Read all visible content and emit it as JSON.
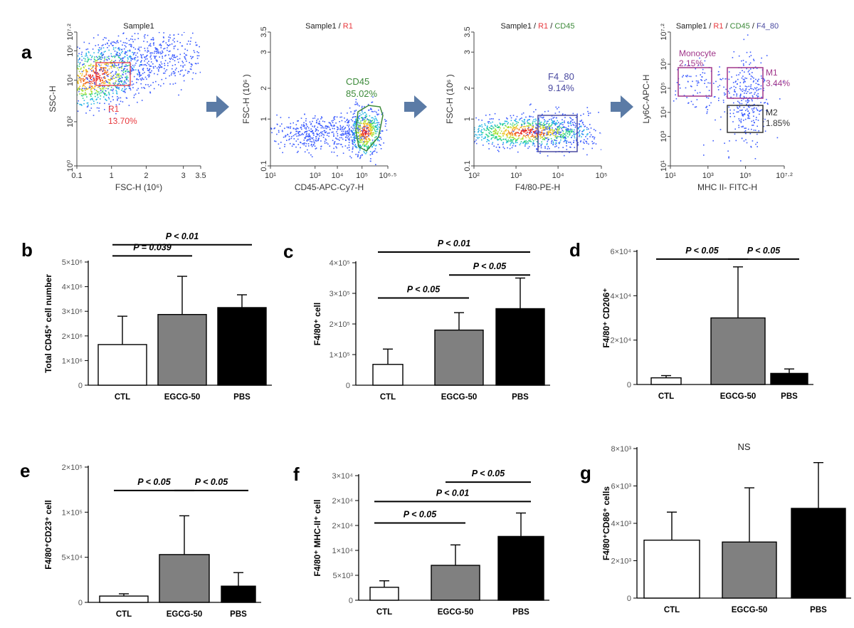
{
  "figure": {
    "panel_labels": [
      "a",
      "b",
      "c",
      "d",
      "e",
      "f",
      "g"
    ],
    "flow_plots": [
      {
        "title": [
          {
            "t": "Sample1",
            "c": "#222222"
          }
        ],
        "xlabel": "FSC-H  (10⁶)",
        "ylabel": "SSC-H",
        "xticks": [
          "0.1",
          "1",
          "2",
          "3",
          "3.5"
        ],
        "yticks": [
          "10⁰",
          "10²",
          "10⁴",
          "10⁶",
          "10⁷·²"
        ],
        "gate_labels": [
          {
            "text": "R1",
            "color": "#e8383d"
          },
          {
            "text": "13.70%",
            "color": "#e8383d"
          }
        ]
      },
      {
        "title": [
          {
            "t": "Sample1",
            "c": "#222222"
          },
          {
            "t": " / ",
            "c": "#222222"
          },
          {
            "t": "R1",
            "c": "#e8383d"
          }
        ],
        "xlabel": "CD45-APC-Cy7-H",
        "ylabel": "FSC-H (10⁶ )",
        "xticks": [
          "10¹",
          "10³",
          "10⁴",
          "10⁵",
          "10⁶·⁵"
        ],
        "yticks": [
          "0.1",
          "1",
          "2",
          "3",
          "3.5"
        ],
        "gate_labels": [
          {
            "text": "CD45",
            "color": "#3d8a3a"
          },
          {
            "text": "85.02%",
            "color": "#3d8a3a"
          }
        ]
      },
      {
        "title": [
          {
            "t": "Sample1",
            "c": "#222222"
          },
          {
            "t": " / ",
            "c": "#222222"
          },
          {
            "t": "R1",
            "c": "#e8383d"
          },
          {
            "t": " / ",
            "c": "#222222"
          },
          {
            "t": "CD45",
            "c": "#3d8a3a"
          }
        ],
        "xlabel": "F4/80-PE-H",
        "ylabel": "FSC-H (10⁶ )",
        "xticks": [
          "10²",
          "10³",
          "10⁴",
          "10⁵"
        ],
        "yticks": [
          "0.1",
          "1",
          "2",
          "3",
          "3.5"
        ],
        "gate_labels": [
          {
            "text": "F4_80",
            "color": "#4a4aa0"
          },
          {
            "text": "9.14%",
            "color": "#4a4aa0"
          }
        ]
      },
      {
        "title": [
          {
            "t": "Sample1",
            "c": "#222222"
          },
          {
            "t": " / ",
            "c": "#222222"
          },
          {
            "t": "R1",
            "c": "#e8383d"
          },
          {
            "t": " / ",
            "c": "#222222"
          },
          {
            "t": "CD45",
            "c": "#3d8a3a"
          },
          {
            "t": " / ",
            "c": "#222222"
          },
          {
            "t": "F4_80",
            "c": "#4a4aa0"
          }
        ],
        "xlabel": "MHC II- FITC-H",
        "ylabel": "Ly6C-APC-H",
        "xticks": [
          "10¹",
          "10³",
          "10⁵",
          "10⁷·²"
        ],
        "yticks": [
          "10¹",
          "10³",
          "10⁴",
          "10⁵",
          "10⁶",
          "10⁷·²"
        ],
        "gate_labels": [
          {
            "text": "Monocyte",
            "color": "#a0368a"
          },
          {
            "text": "2.15%",
            "color": "#a0368a"
          },
          {
            "text": "M1",
            "color": "#a0368a"
          },
          {
            "text": "3.44%",
            "color": "#a0368a"
          },
          {
            "text": "M2",
            "color": "#333333"
          },
          {
            "text": "1.85%",
            "color": "#333333"
          }
        ]
      }
    ]
  },
  "chart_data": [
    {
      "panel": "b",
      "type": "bar",
      "ylabel": "Total CD45⁺ cell number",
      "categories": [
        "CTL",
        "EGCG-50",
        "PBS"
      ],
      "values": [
        1650000.0,
        2870000.0,
        3150000.0
      ],
      "errors": [
        1150000.0,
        1550000.0,
        520000.0
      ],
      "colors": [
        "#ffffff",
        "#808080",
        "#000000"
      ],
      "ylim": [
        0,
        5000000.0
      ],
      "yticks": [
        0,
        1000000.0,
        2000000.0,
        3000000.0,
        4000000.0,
        5000000.0
      ],
      "ytick_labels": [
        "0",
        "1×10⁶",
        "2×10⁶",
        "3×10⁶",
        "4×10⁶",
        "5×10⁶"
      ],
      "comparisons": [
        {
          "from": 0,
          "to": 1,
          "label": "P = 0.039",
          "level": 5250000.0
        },
        {
          "from": 0,
          "to": 2,
          "label": "P < 0.01",
          "level": 5700000.0
        }
      ]
    },
    {
      "panel": "c",
      "type": "bar",
      "ylabel": "F4/80⁺ cell",
      "categories": [
        "CTL",
        "EGCG-50",
        "PBS"
      ],
      "values": [
        68000.0,
        180000.0,
        250000.0
      ],
      "errors": [
        50000.0,
        57000.0,
        100000.0
      ],
      "colors": [
        "#ffffff",
        "#808080",
        "#000000"
      ],
      "ylim": [
        0,
        400000.0
      ],
      "yticks": [
        0,
        100000.0,
        200000.0,
        300000.0,
        400000.0
      ],
      "ytick_labels": [
        "0",
        "1×10⁵",
        "2×10⁵",
        "3×10⁵",
        "4×10⁵"
      ],
      "comparisons": [
        {
          "from": 0,
          "to": 1,
          "label": "P < 0.05",
          "level": 285000.0
        },
        {
          "from": 1,
          "to": 2,
          "label": "P < 0.05",
          "level": 360000.0
        },
        {
          "from": 0,
          "to": 2,
          "label": "P < 0.01",
          "level": 435000.0
        }
      ]
    },
    {
      "panel": "d",
      "type": "bar",
      "ylabel": "F4/80⁺ CD206⁺",
      "categories": [
        "CTL",
        "EGCG-50",
        "PBS"
      ],
      "values": [
        3000.0,
        30000.0,
        5000.0
      ],
      "errors": [
        1000.0,
        23000.0,
        2000.0
      ],
      "colors": [
        "#ffffff",
        "#808080",
        "#000000"
      ],
      "ylim": [
        0,
        60000.0
      ],
      "yticks": [
        0,
        20000.0,
        40000.0,
        60000.0
      ],
      "ytick_labels": [
        "0",
        "2×10⁴",
        "4×10⁴",
        "6×10⁴"
      ],
      "comparisons": [
        {
          "from": 0,
          "to": 1,
          "label": "P < 0.05",
          "level": 56500.0
        },
        {
          "from": 1,
          "to": 2,
          "label": "P < 0.05",
          "level": 56500.0
        }
      ]
    },
    {
      "panel": "e",
      "type": "bar",
      "ylabel": "F4/80⁺CD23⁺ cell",
      "categories": [
        "CTL",
        "EGCG-50",
        "PBS"
      ],
      "values": [
        7000.0,
        53000.0,
        18000.0
      ],
      "errors": [
        2500.0,
        43000.0,
        15000.0
      ],
      "colors": [
        "#ffffff",
        "#808080",
        "#000000"
      ],
      "ylim": [
        0,
        150000.0
      ],
      "yticks": [
        0,
        50000.0,
        100000.0,
        150000.0
      ],
      "ytick_labels": [
        "0",
        "5×10⁴",
        "1×10⁵",
        "2×10⁵"
      ],
      "comparisons": [
        {
          "from": 0,
          "to": 1,
          "label": "P < 0.05",
          "level": 124000.0
        },
        {
          "from": 1,
          "to": 2,
          "label": "P < 0.05",
          "level": 124000.0
        }
      ]
    },
    {
      "panel": "f",
      "type": "bar",
      "ylabel": "F4/80⁺ MHC-II⁺ cell",
      "categories": [
        "CTL",
        "EGCG-50",
        "PBS"
      ],
      "values": [
        2600.0,
        7000.0,
        12800.0
      ],
      "errors": [
        1300.0,
        4100.0,
        4700.0
      ],
      "colors": [
        "#ffffff",
        "#808080",
        "#000000"
      ],
      "ylim": [
        0,
        25000.0
      ],
      "yticks": [
        0,
        5000.0,
        10000.0,
        15000.0,
        20000.0,
        25000.0
      ],
      "ytick_labels": [
        "0",
        "5×10³",
        "1×10⁴",
        "2×10⁴",
        "2×10⁴",
        "3×10⁴"
      ],
      "comparisons": [
        {
          "from": 0,
          "to": 1,
          "label": "P < 0.05",
          "level": 15500.0
        },
        {
          "from": 0,
          "to": 2,
          "label": "P < 0.01",
          "level": 19800.0
        },
        {
          "from": 1,
          "to": 2,
          "label": "P < 0.05",
          "level": 23700.0
        }
      ]
    },
    {
      "panel": "g",
      "type": "bar",
      "ylabel": "F4/80⁺CD86⁺ cells",
      "categories": [
        "CTL",
        "EGCG-50",
        "PBS"
      ],
      "values": [
        3100.0,
        3000.0,
        4800.0
      ],
      "errors": [
        1500.0,
        2900.0,
        2450.0
      ],
      "colors": [
        "#ffffff",
        "#808080",
        "#000000"
      ],
      "ylim": [
        0,
        8000.0
      ],
      "yticks": [
        0,
        2000.0,
        4000.0,
        6000.0,
        8000.0
      ],
      "ytick_labels": [
        "0",
        "2×10³",
        "4×10³",
        "6×10³",
        "8×10³"
      ],
      "annotation": "NS",
      "comparisons": []
    }
  ]
}
